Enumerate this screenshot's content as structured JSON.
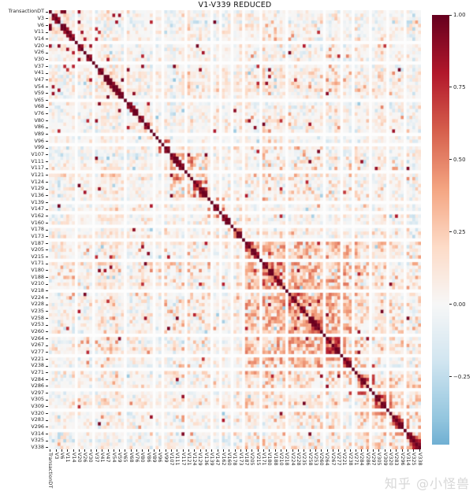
{
  "watermark": {
    "text": "知乎 @小怪兽"
  },
  "chart_data": {
    "type": "heatmap",
    "title": "V1-V339 REDUCED",
    "description": "Correlation matrix heatmap of reduced V1-V339 feature columns plus TransactionDT; symmetric 129x129 matrix, diagonal = 1.0, every 2nd row/column labeled",
    "matrix_size": 129,
    "label_every": 2,
    "diagonal_value": 1.0,
    "tick_labels": [
      "TransactionDT",
      "V3",
      "V6",
      "V11",
      "V14",
      "V20",
      "V26",
      "V30",
      "V37",
      "V41",
      "V47",
      "V54",
      "V59",
      "V65",
      "V68",
      "V76",
      "V80",
      "V86",
      "V89",
      "V96",
      "V99",
      "V107",
      "V111",
      "V117",
      "V121",
      "V124",
      "V129",
      "V136",
      "V139",
      "V147",
      "V162",
      "V160",
      "V178",
      "V173",
      "V187",
      "V205",
      "V215",
      "V171",
      "V180",
      "V188",
      "V210",
      "V218",
      "V224",
      "V228",
      "V235",
      "V258",
      "V253",
      "V260",
      "V264",
      "V267",
      "V277",
      "V221",
      "V238",
      "V271",
      "V284",
      "V286",
      "V297",
      "V305",
      "V309",
      "V320",
      "V283",
      "V296",
      "V314",
      "V325",
      "V338"
    ],
    "colorbar": {
      "tick_labels": [
        "1.00",
        "0.75",
        "0.50",
        "0.25",
        "0.00",
        "−0.25"
      ],
      "tick_values": [
        1.0,
        0.75,
        0.5,
        0.25,
        0.0,
        -0.25
      ],
      "vmin": -0.485,
      "vmax": 1.0,
      "position": "right"
    },
    "colormap": {
      "name": "RdBu_r",
      "domain": [
        -1,
        1
      ],
      "anchors_low_to_high": [
        "#053061",
        "#2166ac",
        "#4393c3",
        "#92c5de",
        "#d1e5f0",
        "#f7f7f7",
        "#fddbc7",
        "#f4a582",
        "#d6604d",
        "#b2182b",
        "#67001f"
      ]
    },
    "grid": false,
    "estimated_from_pixels": true,
    "pattern": {
      "note": "procedural approximation of the correlation structure read from the image",
      "seed": 42,
      "noise": 0.22,
      "neg_p": 0.42,
      "streak_p": 0.22,
      "red_dots": 110,
      "blue_dots": 60,
      "groups": [
        [
          1,
          6,
          0.05,
          0.3,
          0.6,
          0.5
        ],
        [
          7,
          14,
          0.03,
          0.25,
          0.5,
          0.45
        ],
        [
          15,
          21,
          0.03,
          0.25,
          0.5,
          0.4
        ],
        [
          22,
          29,
          0.03,
          0.28,
          0.55,
          0.45
        ],
        [
          30,
          37,
          0.05,
          0.3,
          0.55,
          0.5
        ],
        [
          38,
          41,
          0.35,
          0.8,
          0.7,
          0.85
        ],
        [
          42,
          49,
          0.3,
          0.75,
          0.6,
          0.8
        ],
        [
          50,
          54,
          0.35,
          0.8,
          0.6,
          0.8
        ],
        [
          55,
          60,
          0.25,
          0.65,
          0.5,
          0.7
        ],
        [
          61,
          63,
          0.4,
          0.85,
          0.7,
          0.8
        ],
        [
          64,
          67,
          0.35,
          0.8,
          0.6,
          0.8
        ],
        [
          68,
          72,
          0.35,
          0.85,
          0.65,
          0.8
        ],
        [
          73,
          80,
          0.3,
          0.8,
          0.6,
          0.75
        ],
        [
          81,
          88,
          0.3,
          0.8,
          0.6,
          0.75
        ],
        [
          89,
          95,
          0.35,
          0.85,
          0.6,
          0.8
        ],
        [
          96,
          100,
          0.35,
          0.85,
          0.6,
          0.8
        ],
        [
          101,
          106,
          0.3,
          0.8,
          0.6,
          0.75
        ],
        [
          107,
          112,
          0.3,
          0.75,
          0.6,
          0.75
        ],
        [
          113,
          118,
          0.35,
          0.8,
          0.6,
          0.8
        ],
        [
          119,
          124,
          0.3,
          0.75,
          0.6,
          0.75
        ],
        [
          125,
          128,
          0.4,
          0.85,
          0.7,
          0.8
        ]
      ],
      "cross_rects": [
        [
          68,
          106,
          68,
          106,
          0.45,
          0.12,
          0.55
        ],
        [
          42,
          54,
          42,
          54,
          0.35,
          0.1,
          0.4
        ],
        [
          107,
          128,
          107,
          128,
          0.3,
          0.1,
          0.45
        ],
        [
          107,
          128,
          68,
          106,
          0.2,
          0.1,
          0.45
        ],
        [
          55,
          67,
          55,
          67,
          0.25,
          0.08,
          0.35
        ],
        [
          68,
          106,
          0,
          67,
          0.05,
          0.15,
          0.5
        ],
        [
          107,
          128,
          0,
          67,
          0.04,
          0.15,
          0.5
        ],
        [
          68,
          106,
          42,
          54,
          0.12,
          0.1,
          0.45
        ],
        [
          104,
          104,
          20,
          128,
          0.5,
          -0.16,
          -0.04
        ]
      ],
      "blank_indices": [
        9,
        15,
        26,
        36,
        39,
        47,
        56,
        59,
        63,
        67,
        73,
        82,
        95,
        101,
        105,
        111,
        117,
        123
      ]
    }
  }
}
